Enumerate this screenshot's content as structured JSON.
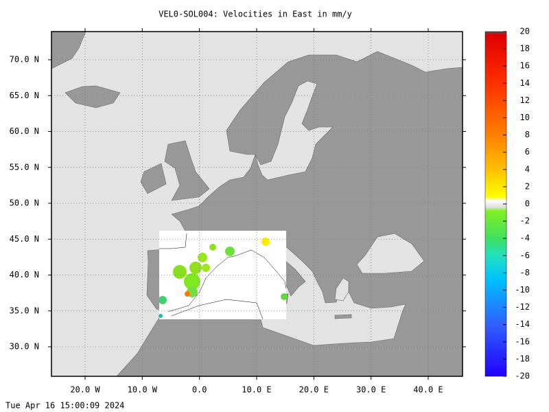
{
  "title": "VEL0-SOL004: Velocities in East in mm/y",
  "timestamp": "Tue Apr 16 15:00:09 2024",
  "x_axis": {
    "ticks": [
      "20.0 W",
      "10.0 W",
      "0.0",
      "10.0 E",
      "20.0 E",
      "30.0 E",
      "40.0 E"
    ]
  },
  "y_axis": {
    "ticks": [
      "70.0 N",
      "65.0 N",
      "60.0 N",
      "55.0 N",
      "50.0 N",
      "45.0 N",
      "40.0 N",
      "35.0 N",
      "30.0 N"
    ]
  },
  "colorbar": {
    "ticks": [
      20,
      18,
      16,
      14,
      12,
      10,
      8,
      6,
      4,
      2,
      0,
      -2,
      -4,
      -6,
      -8,
      -10,
      -12,
      -14,
      -16,
      -18,
      -20
    ]
  }
}
